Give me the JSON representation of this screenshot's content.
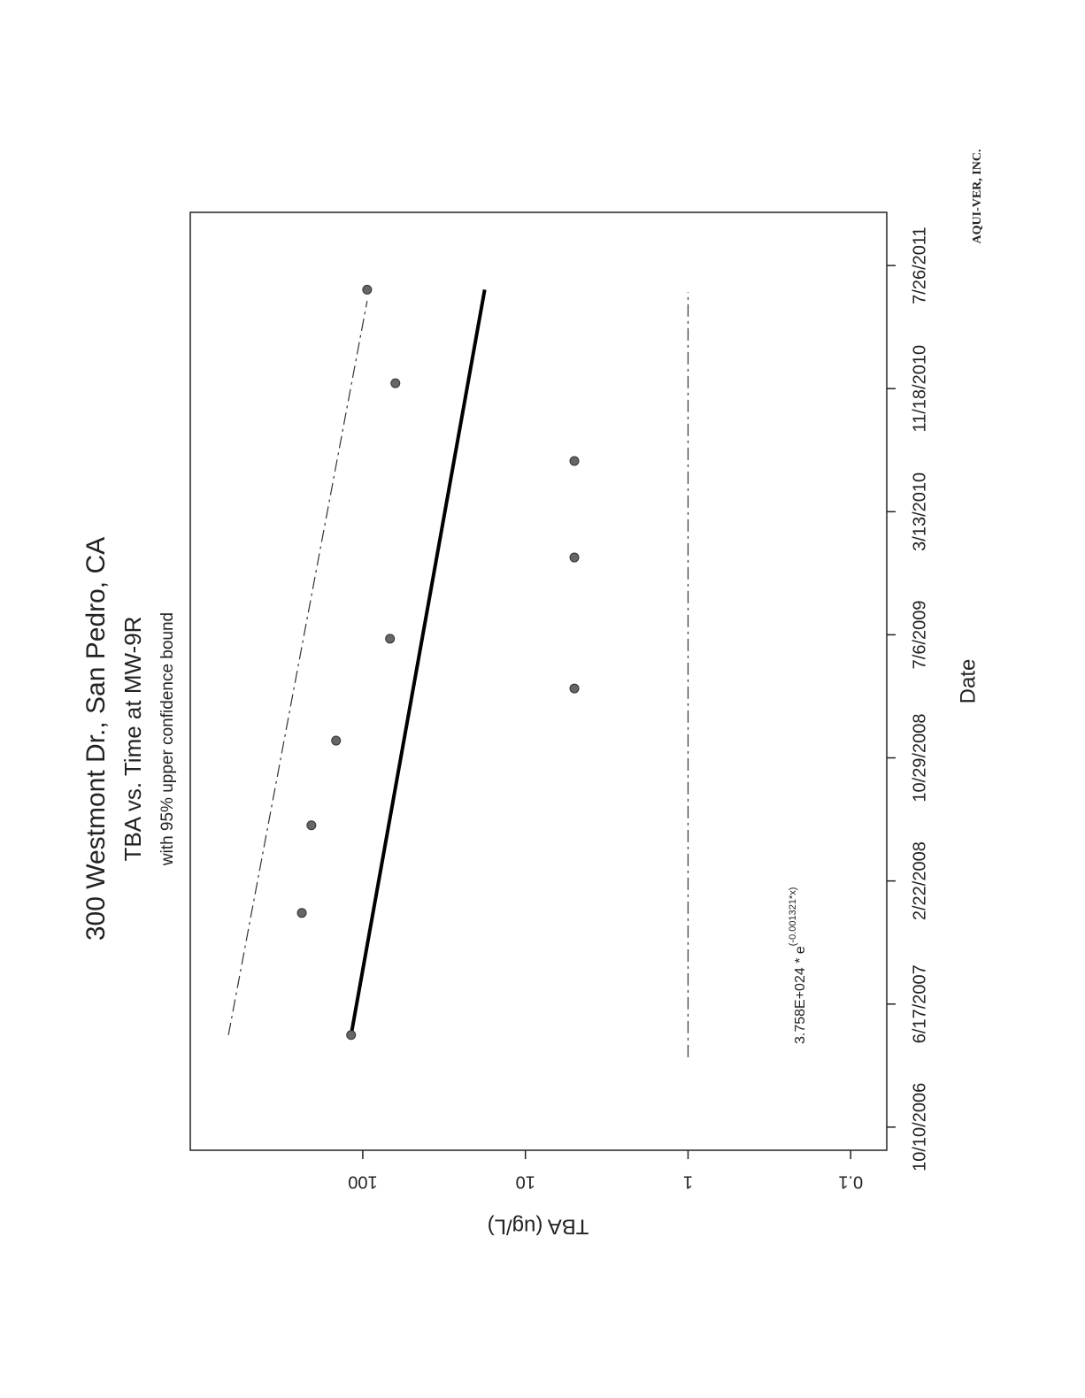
{
  "chart_data": {
    "type": "scatter",
    "title": "300 Westmont Dr., San Pedro, CA",
    "subtitle": "TBA vs. Time at MW-9R",
    "caption": "with 95% upper confidence bound",
    "x_label": "Date",
    "y_label": "TBA (ug/L)",
    "annotation": {
      "text": "3.758E+024 * e",
      "superscript": "(-0.001321*x)"
    },
    "credit": "AQUI-VER, INC.",
    "y_scale": "log",
    "x": [
      "2007-04-15",
      "2007-12-19",
      "2008-06-14",
      "2008-12-03",
      "2009-03-19",
      "2009-06-28",
      "2009-12-10",
      "2010-06-24",
      "2010-11-29",
      "2011-06-07"
    ],
    "series": [
      {
        "color": "#666666",
        "values": [
          118,
          237,
          207,
          146,
          5,
          68,
          5,
          5,
          63,
          94
        ]
      }
    ],
    "lines": [
      {
        "style": "solid",
        "color": "#000000",
        "x": [
          "2007-04-15",
          "2011-06-07"
        ],
        "values": [
          118,
          17.8
        ]
      },
      {
        "style": "dashdot",
        "color": "#333333",
        "x": [
          "2007-04-15",
          "2011-05-15"
        ],
        "values": [
          670,
          94
        ]
      },
      {
        "style": "dashdot",
        "color": "#333333",
        "x": [
          "2007-03-01",
          "2011-06-02"
        ],
        "values": [
          1,
          1
        ]
      }
    ],
    "xlim": [
      "2006-08-24",
      "2011-11-11"
    ],
    "xticks": [
      {
        "value": "2006-10-10",
        "label": "10/10/2006"
      },
      {
        "value": "2007-06-17",
        "label": "6/17/2007"
      },
      {
        "value": "2008-02-22",
        "label": "2/22/2008"
      },
      {
        "value": "2008-10-29",
        "label": "10/29/2008"
      },
      {
        "value": "2009-07-06",
        "label": "7/6/2009"
      },
      {
        "value": "2010-03-13",
        "label": "3/13/2010"
      },
      {
        "value": "2010-11-18",
        "label": "11/18/2010"
      },
      {
        "value": "2011-07-26",
        "label": "7/26/2011"
      }
    ],
    "ylim": [
      0.06,
      1150
    ],
    "yticks": [
      0.1,
      1,
      10,
      100
    ]
  }
}
